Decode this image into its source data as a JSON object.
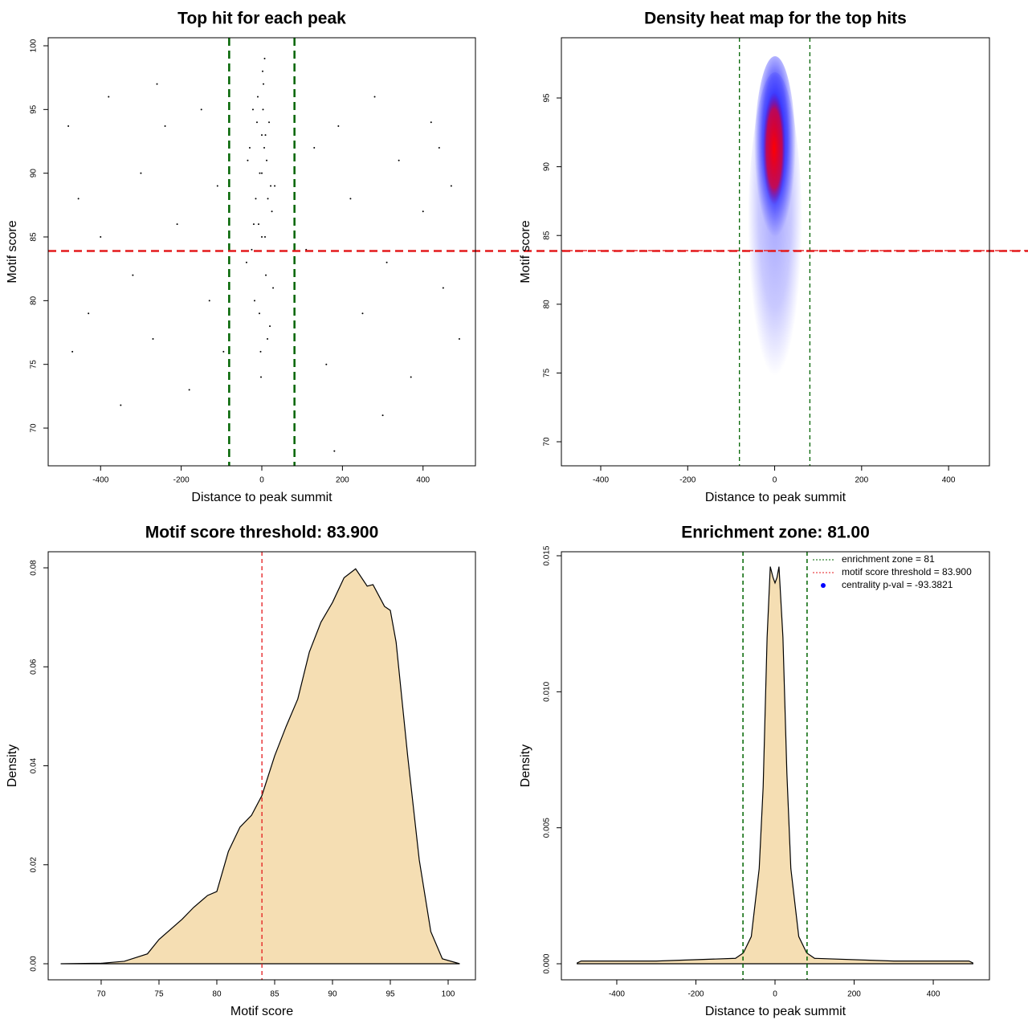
{
  "chart_data": [
    {
      "type": "scatter",
      "title": "Top hit for each peak",
      "xlabel": "Distance to peak summit",
      "ylabel": "Motif score",
      "x": [
        -30,
        -22,
        -15,
        -10,
        -5,
        0,
        4,
        8,
        12,
        18,
        25,
        32,
        -38,
        -18,
        -8,
        2,
        10,
        20,
        -25,
        -3,
        6,
        15,
        -12,
        0,
        28,
        -6,
        3,
        -20,
        9,
        14,
        -2,
        22,
        -35,
        7,
        0,
        -480,
        -455,
        -430,
        -400,
        -380,
        -350,
        -320,
        -300,
        -270,
        -240,
        -210,
        -180,
        -150,
        -130,
        -110,
        -95,
        110,
        130,
        160,
        190,
        220,
        250,
        280,
        310,
        340,
        370,
        400,
        420,
        450,
        470,
        490,
        -470,
        -260,
        300,
        440,
        180
      ],
      "y": [
        92,
        95,
        88,
        96,
        90,
        93,
        97,
        85,
        91,
        94,
        87,
        89,
        83,
        80,
        86,
        98,
        82,
        78,
        84,
        76,
        92,
        88,
        94,
        90,
        81,
        79,
        95,
        86,
        93,
        77,
        74,
        89,
        91,
        99,
        85,
        93.7,
        88,
        79,
        85,
        96,
        71.8,
        82,
        90,
        77,
        93.7,
        86,
        73,
        95,
        80,
        89,
        76,
        84,
        92,
        75,
        93.7,
        88,
        79,
        96,
        83,
        91,
        74,
        87,
        94,
        81,
        89,
        77,
        76,
        97,
        71,
        92,
        68.2
      ],
      "color": "#000000",
      "xlim": [
        -530,
        530
      ],
      "ylim": [
        67.04,
        100.63
      ],
      "xticks": [
        -400,
        -200,
        0,
        200,
        400
      ],
      "yticks": [
        70,
        75,
        80,
        85,
        90,
        95,
        100
      ],
      "vlines": [
        -81,
        81
      ],
      "vline_color": "#006400",
      "hlines": [
        83.9
      ],
      "hline_color": "#e41a1c"
    },
    {
      "type": "heatmap",
      "title": "Density heat map for the top hits",
      "xlabel": "Distance to peak summit",
      "ylabel": "Motif score",
      "xlim": [
        -490.5,
        494
      ],
      "ylim": [
        68.25,
        99.38
      ],
      "xticks": [
        -400,
        -200,
        0,
        200,
        400
      ],
      "yticks": [
        70,
        75,
        80,
        85,
        90,
        95
      ],
      "vlines": [
        -81,
        81
      ],
      "vline_color": "#006400",
      "hlines": [
        83.9
      ],
      "hline_color": "#e41a1c"
    },
    {
      "type": "density",
      "title": "Motif score threshold: 83.900",
      "xlabel": "Motif score",
      "ylabel": "Density",
      "x": [
        66.5,
        70,
        72,
        74,
        75,
        77,
        78,
        79.2,
        80,
        81,
        82,
        83,
        83.9,
        85,
        86,
        87,
        88,
        89,
        90,
        91,
        92,
        93,
        93.5,
        94.5,
        95,
        95.5,
        96.5,
        97.5,
        98.5,
        99.5,
        101
      ],
      "values": [
        0,
        0.0001,
        0.0005,
        0.002,
        0.0049,
        0.009,
        0.0114,
        0.0138,
        0.0146,
        0.0227,
        0.0276,
        0.03,
        0.034,
        0.042,
        0.048,
        0.0535,
        0.063,
        0.069,
        0.073,
        0.078,
        0.0798,
        0.0763,
        0.0766,
        0.0722,
        0.0714,
        0.065,
        0.042,
        0.021,
        0.0065,
        0.001,
        0
      ],
      "color": "#f5deb3",
      "xlim": [
        65.42,
        102.36
      ],
      "ylim": [
        -0.003245,
        0.08325
      ],
      "xticks": [
        70,
        75,
        80,
        85,
        90,
        95,
        100
      ],
      "yticks": [
        {
          "value": 0,
          "label": "0.00"
        },
        {
          "value": 0.02,
          "label": "0.02"
        },
        {
          "value": 0.04,
          "label": "0.04"
        },
        {
          "value": 0.06,
          "label": "0.06"
        },
        {
          "value": 0.08,
          "label": "0.08"
        }
      ],
      "vlines": [
        83.9
      ],
      "vline_color": "#e41a1c"
    },
    {
      "type": "density",
      "title": "Enrichment zone: 81.00",
      "xlabel": "Distance to peak summit",
      "ylabel": "Density",
      "x": [
        -500,
        -490,
        -300,
        -100,
        -80,
        -60,
        -40,
        -30,
        -20,
        -12,
        -5,
        0,
        5,
        10,
        20,
        30,
        40,
        60,
        80,
        100,
        300,
        490,
        500
      ],
      "values": [
        3e-05,
        0.0001,
        0.0001,
        0.0002,
        0.0004,
        0.001,
        0.0035,
        0.0065,
        0.012,
        0.0146,
        0.0142,
        0.014,
        0.0142,
        0.0146,
        0.012,
        0.007,
        0.0035,
        0.001,
        0.0004,
        0.0002,
        0.0001,
        0.0001,
        3e-05
      ],
      "color": "#f5deb3",
      "xlim": [
        -540,
        542
      ],
      "ylim": [
        -0.00059,
        0.015148
      ],
      "xticks": [
        -400,
        -200,
        0,
        200,
        400
      ],
      "yticks": [
        {
          "value": 0,
          "label": "0.000"
        },
        {
          "value": 0.005,
          "label": "0.005"
        },
        {
          "value": 0.01,
          "label": "0.010"
        },
        {
          "value": 0.015,
          "label": "0.015"
        }
      ],
      "vlines": [
        -81,
        81
      ],
      "vline_color": "#006400",
      "legend_position": "topright",
      "legend": [
        {
          "label": "enrichment zone = 81",
          "color": "#006400",
          "symbol": "line"
        },
        {
          "label": "motif score threshold = 83.900",
          "color": "#e41a1c",
          "symbol": "line"
        },
        {
          "label": "centrality p-val = -93.3821",
          "color": "#0000ff",
          "symbol": "point"
        }
      ]
    }
  ]
}
